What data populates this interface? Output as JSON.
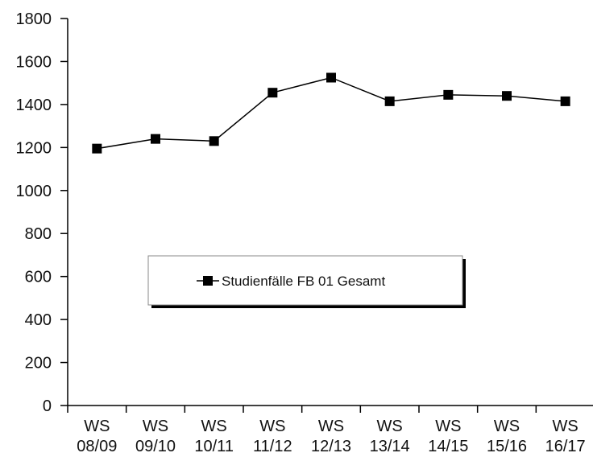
{
  "chart_data": {
    "type": "line",
    "title": "",
    "xlabel": "",
    "ylabel": "",
    "categories": [
      [
        "WS",
        "08/09"
      ],
      [
        "WS",
        "09/10"
      ],
      [
        "WS",
        "10/11"
      ],
      [
        "WS",
        "11/12"
      ],
      [
        "WS",
        "12/13"
      ],
      [
        "WS",
        "13/14"
      ],
      [
        "WS",
        "14/15"
      ],
      [
        "WS",
        "15/16"
      ],
      [
        "WS",
        "16/17"
      ]
    ],
    "series": [
      {
        "name": "Studienfälle FB 01 Gesamt",
        "values": [
          1195,
          1240,
          1230,
          1455,
          1525,
          1415,
          1445,
          1440,
          1415
        ],
        "color": "#000000",
        "marker": "square"
      }
    ],
    "ylim": [
      0,
      1800
    ],
    "yticks": [
      0,
      200,
      400,
      600,
      800,
      1000,
      1200,
      1400,
      1600,
      1800
    ],
    "grid": false,
    "legend_position": "center"
  }
}
